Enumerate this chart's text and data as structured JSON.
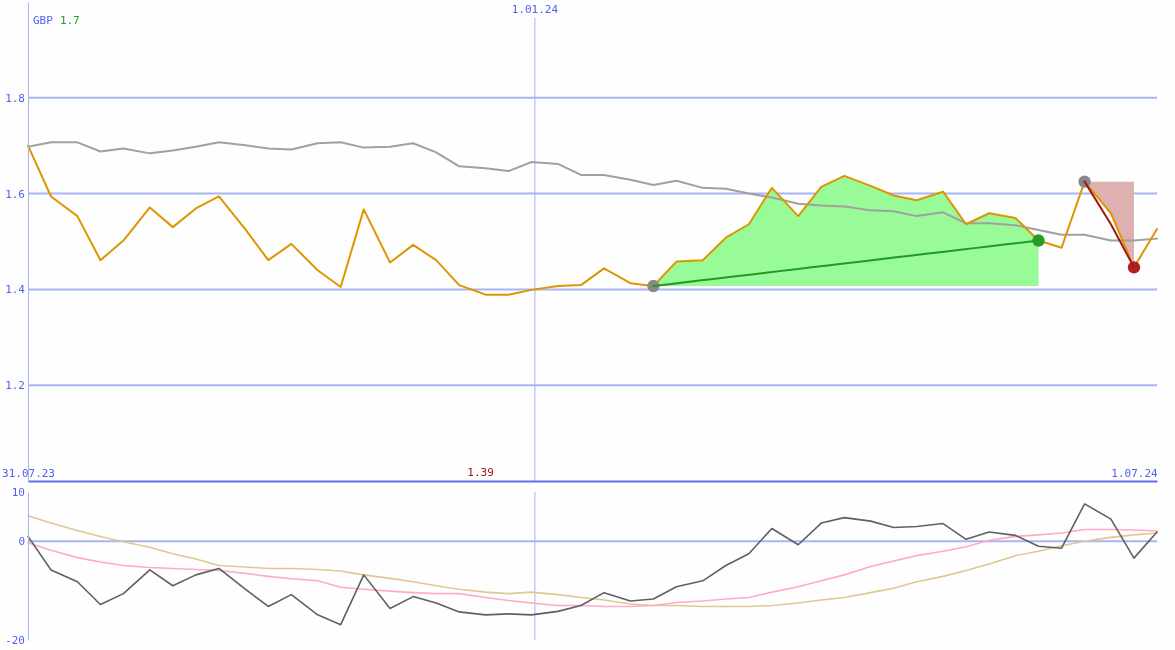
{
  "chart_data": [
    {
      "type": "line",
      "ylabel": "GBP",
      "annotations": [
        "1.7",
        "1.39"
      ],
      "x": [
        "2023-07-31",
        "2023-08-07",
        "2023-08-15",
        "2023-08-22",
        "2023-08-29",
        "2023-09-06",
        "2023-09-13",
        "2023-09-20",
        "2023-09-27",
        "2023-10-05",
        "2023-10-12",
        "2023-10-19",
        "2023-10-27",
        "2023-11-03",
        "2023-11-10",
        "2023-11-18",
        "2023-11-25",
        "2023-12-02",
        "2023-12-09",
        "2023-12-17",
        "2023-12-24",
        "2023-12-31",
        "2024-01-08",
        "2024-01-15",
        "2024-01-22",
        "2024-01-30",
        "2024-02-06",
        "2024-02-13",
        "2024-02-21",
        "2024-02-28",
        "2024-03-06",
        "2024-03-13",
        "2024-03-21",
        "2024-03-28",
        "2024-04-04",
        "2024-04-12",
        "2024-04-19",
        "2024-04-26",
        "2024-05-04",
        "2024-05-11",
        "2024-05-18",
        "2024-05-26",
        "2024-06-02",
        "2024-06-09",
        "2024-06-16",
        "2024-06-24",
        "2024-07-01",
        "2024-07-08"
      ],
      "xlim": [
        "2023-07-31",
        "2024-07-08"
      ],
      "xticks": [
        {
          "value": "2023-07-31",
          "label": "31.07.23"
        },
        {
          "value": "2024-07-01",
          "label": "1.07.24"
        }
      ],
      "ylim": [
        1.0,
        2.0
      ],
      "yticks": [
        1.2,
        1.4,
        1.6,
        1.8
      ],
      "grid": "y",
      "ref_lines": [
        {
          "axis": "x",
          "value": "2024-01-01",
          "label": "1.01.24"
        }
      ],
      "series": [
        {
          "type": "area",
          "color": "#98fb98",
          "x": [
            "2024-02-06",
            "2024-02-13",
            "2024-02-21",
            "2024-02-28",
            "2024-03-06",
            "2024-03-13",
            "2024-03-21",
            "2024-03-28",
            "2024-04-04",
            "2024-04-12",
            "2024-04-19",
            "2024-04-26",
            "2024-05-04",
            "2024-05-11",
            "2024-05-18",
            "2024-05-26",
            "2024-06-02"
          ],
          "values": [
            1.407,
            1.458,
            1.461,
            1.508,
            1.536,
            1.612,
            1.553,
            1.614,
            1.637,
            1.616,
            1.596,
            1.586,
            1.604,
            1.536,
            1.559,
            1.549,
            1.502
          ]
        },
        {
          "color": "#a0a0a0",
          "values": [
            1.698,
            1.707,
            1.707,
            1.688,
            1.694,
            1.684,
            1.69,
            1.698,
            1.707,
            1.701,
            1.694,
            1.692,
            1.705,
            1.707,
            1.696,
            1.698,
            1.705,
            1.686,
            1.657,
            1.653,
            1.647,
            1.666,
            1.662,
            1.639,
            1.639,
            1.629,
            1.618,
            1.627,
            1.612,
            1.61,
            1.6,
            1.592,
            1.579,
            1.575,
            1.573,
            1.565,
            1.563,
            1.553,
            1.561,
            1.538,
            1.538,
            1.534,
            1.524,
            1.514,
            1.514,
            1.502,
            1.502,
            1.506
          ]
        },
        {
          "color": "#dd9600",
          "values": [
            1.7,
            1.594,
            1.553,
            1.461,
            1.502,
            1.571,
            1.53,
            1.569,
            1.594,
            1.526,
            1.461,
            1.495,
            1.44,
            1.405,
            1.567,
            1.456,
            1.493,
            1.461,
            1.409,
            1.389,
            1.389,
            1.399,
            1.407,
            1.409,
            1.444,
            1.413,
            1.407,
            1.458,
            1.461,
            1.508,
            1.536,
            1.612,
            1.553,
            1.614,
            1.637,
            1.616,
            1.596,
            1.586,
            1.604,
            1.536,
            1.559,
            1.549,
            1.502,
            1.487,
            1.625,
            1.559,
            1.446,
            1.526
          ]
        },
        {
          "type": "scatter",
          "marker": "circle",
          "color": "#888888",
          "x": [
            "2024-02-06",
            "2024-06-16"
          ],
          "values": [
            1.407,
            1.625
          ]
        },
        {
          "type": "scatter",
          "marker": "circle",
          "color": "#22a022",
          "x": [
            "2024-06-02"
          ],
          "values": [
            1.502
          ]
        },
        {
          "type": "scatter",
          "marker": "circle",
          "color": "#b02020",
          "x": [
            "2024-07-01"
          ],
          "values": [
            1.446
          ]
        },
        {
          "color": "#229922",
          "x": [
            "2024-02-06",
            "2024-06-02"
          ],
          "values": [
            1.407,
            1.502
          ]
        },
        {
          "color": "#a01818",
          "x": [
            "2024-06-16",
            "2024-06-24",
            "2024-07-01"
          ],
          "values": [
            1.625,
            1.536,
            1.446
          ],
          "lower": [
            1.625,
            1.559,
            1.446
          ],
          "upper": [
            1.625,
            1.625,
            1.625
          ]
        }
      ]
    },
    {
      "type": "line",
      "x": [
        "2023-07-31",
        "2023-08-07",
        "2023-08-15",
        "2023-08-22",
        "2023-08-29",
        "2023-09-06",
        "2023-09-13",
        "2023-09-20",
        "2023-09-27",
        "2023-10-05",
        "2023-10-12",
        "2023-10-19",
        "2023-10-27",
        "2023-11-03",
        "2023-11-10",
        "2023-11-18",
        "2023-11-25",
        "2023-12-02",
        "2023-12-09",
        "2023-12-17",
        "2023-12-24",
        "2023-12-31",
        "2024-01-08",
        "2024-01-15",
        "2024-01-22",
        "2024-01-30",
        "2024-02-06",
        "2024-02-13",
        "2024-02-21",
        "2024-02-28",
        "2024-03-06",
        "2024-03-13",
        "2024-03-21",
        "2024-03-28",
        "2024-04-04",
        "2024-04-12",
        "2024-04-19",
        "2024-04-26",
        "2024-05-04",
        "2024-05-11",
        "2024-05-18",
        "2024-05-26",
        "2024-06-02",
        "2024-06-09",
        "2024-06-16",
        "2024-06-24",
        "2024-07-01",
        "2024-07-08"
      ],
      "xlim": [
        "2023-07-31",
        "2024-07-08"
      ],
      "ylim": [
        -20,
        10
      ],
      "yticks": [
        10,
        0,
        -20
      ],
      "tick_labels": "y",
      "ref_lines": [
        {
          "axis": "y",
          "value": 0
        },
        {
          "axis": "x",
          "value": "2024-01-01"
        }
      ],
      "series": [
        {
          "color": "#e0c890",
          "values": [
            5.2,
            3.7,
            2.2,
            1.0,
            -0.1,
            -1.2,
            -2.5,
            -3.6,
            -4.9,
            -5.2,
            -5.5,
            -5.5,
            -5.7,
            -6.0,
            -6.8,
            -7.5,
            -8.2,
            -9.0,
            -9.7,
            -10.3,
            -10.6,
            -10.3,
            -10.8,
            -11.4,
            -11.9,
            -12.7,
            -13.0,
            -13.0,
            -13.2,
            -13.2,
            -13.2,
            -13.0,
            -12.5,
            -11.9,
            -11.4,
            -10.4,
            -9.5,
            -8.2,
            -7.1,
            -5.9,
            -4.6,
            -2.9,
            -2.0,
            -0.9,
            0,
            0.8,
            1.3,
            1.7
          ]
        },
        {
          "color": "#ffaac8",
          "values": [
            -0.3,
            -1.8,
            -3.3,
            -4.2,
            -4.9,
            -5.3,
            -5.5,
            -5.7,
            -5.9,
            -6.5,
            -7.1,
            -7.6,
            -8.0,
            -9.3,
            -9.7,
            -10.1,
            -10.4,
            -10.6,
            -10.6,
            -11.4,
            -12.0,
            -12.5,
            -13.0,
            -13.0,
            -13.2,
            -13.2,
            -13.0,
            -12.4,
            -12.1,
            -11.7,
            -11.4,
            -10.3,
            -9.2,
            -8.0,
            -6.8,
            -5.1,
            -4.0,
            -2.9,
            -2.0,
            -1.1,
            0.2,
            1.0,
            1.3,
            1.7,
            2.4,
            2.4,
            2.3,
            2.1
          ]
        },
        {
          "color": "#606060",
          "values": [
            1,
            -5.8,
            -8.2,
            -12.8,
            -10.6,
            -5.8,
            -9.0,
            -6.8,
            -5.5,
            -9.7,
            -13.2,
            -10.8,
            -14.9,
            -16.9,
            -6.8,
            -13.6,
            -11.2,
            -12.5,
            -14.3,
            -14.9,
            -14.7,
            -14.9,
            -14.2,
            -13.0,
            -10.4,
            -12.1,
            -11.7,
            -9.2,
            -8.0,
            -4.9,
            -2.5,
            2.6,
            -0.7,
            3.7,
            4.8,
            4.1,
            2.8,
            3.0,
            3.6,
            0.4,
            1.9,
            1.2,
            -1.0,
            -1.4,
            7.6,
            4.5,
            -3.4,
            1.9
          ]
        }
      ]
    }
  ]
}
